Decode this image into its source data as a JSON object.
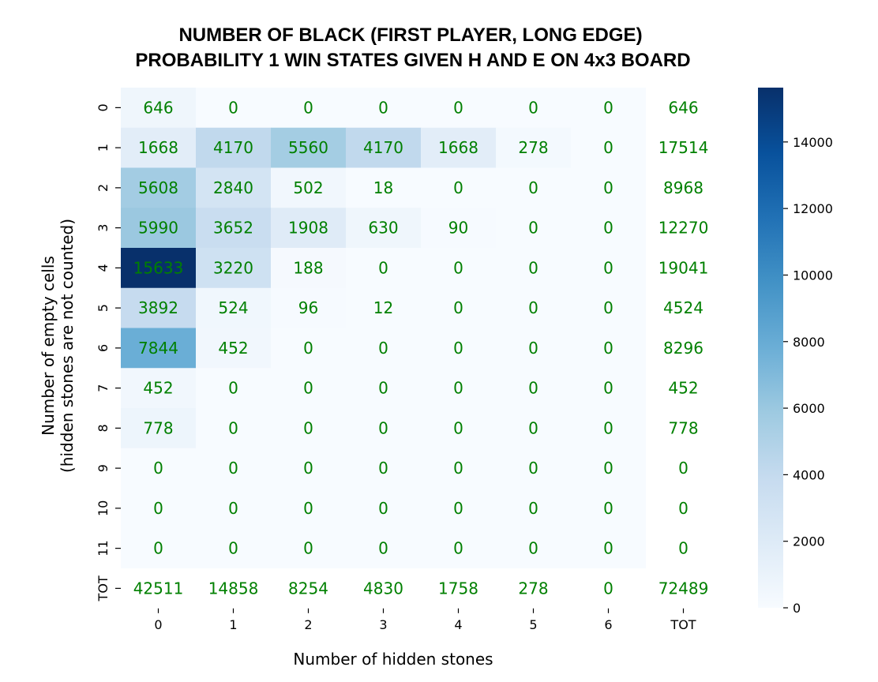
{
  "chart_data": {
    "type": "heatmap",
    "title_lines": [
      "NUMBER OF BLACK (FIRST PLAYER, LONG EDGE)",
      "PROBABILITY 1 WIN STATES GIVEN H AND E ON 4x3 BOARD"
    ],
    "xlabel": "Number of hidden stones",
    "ylabel_lines": [
      "Number of empty cells",
      "(hidden stones are not counted)"
    ],
    "x_categories": [
      "0",
      "1",
      "2",
      "3",
      "4",
      "5",
      "6",
      "TOT"
    ],
    "y_categories": [
      "0",
      "1",
      "2",
      "3",
      "4",
      "5",
      "6",
      "7",
      "8",
      "9",
      "10",
      "11",
      "TOT"
    ],
    "values": [
      [
        646,
        0,
        0,
        0,
        0,
        0,
        0,
        646
      ],
      [
        1668,
        4170,
        5560,
        4170,
        1668,
        278,
        0,
        17514
      ],
      [
        5608,
        2840,
        502,
        18,
        0,
        0,
        0,
        8968
      ],
      [
        5990,
        3652,
        1908,
        630,
        90,
        0,
        0,
        12270
      ],
      [
        15633,
        3220,
        188,
        0,
        0,
        0,
        0,
        19041
      ],
      [
        3892,
        524,
        96,
        12,
        0,
        0,
        0,
        4524
      ],
      [
        7844,
        452,
        0,
        0,
        0,
        0,
        0,
        8296
      ],
      [
        452,
        0,
        0,
        0,
        0,
        0,
        0,
        452
      ],
      [
        778,
        0,
        0,
        0,
        0,
        0,
        0,
        778
      ],
      [
        0,
        0,
        0,
        0,
        0,
        0,
        0,
        0
      ],
      [
        0,
        0,
        0,
        0,
        0,
        0,
        0,
        0
      ],
      [
        0,
        0,
        0,
        0,
        0,
        0,
        0,
        0
      ],
      [
        42511,
        14858,
        8254,
        4830,
        1758,
        278,
        0,
        72489
      ]
    ],
    "color_scale_cells": "rows 0-11 x columns 0-6",
    "colormap": "Blues",
    "colorbar": {
      "min": 0,
      "max": 15633,
      "ticks": [
        0,
        2000,
        4000,
        6000,
        8000,
        10000,
        12000,
        14000
      ]
    },
    "annotation_color": "#008000"
  }
}
